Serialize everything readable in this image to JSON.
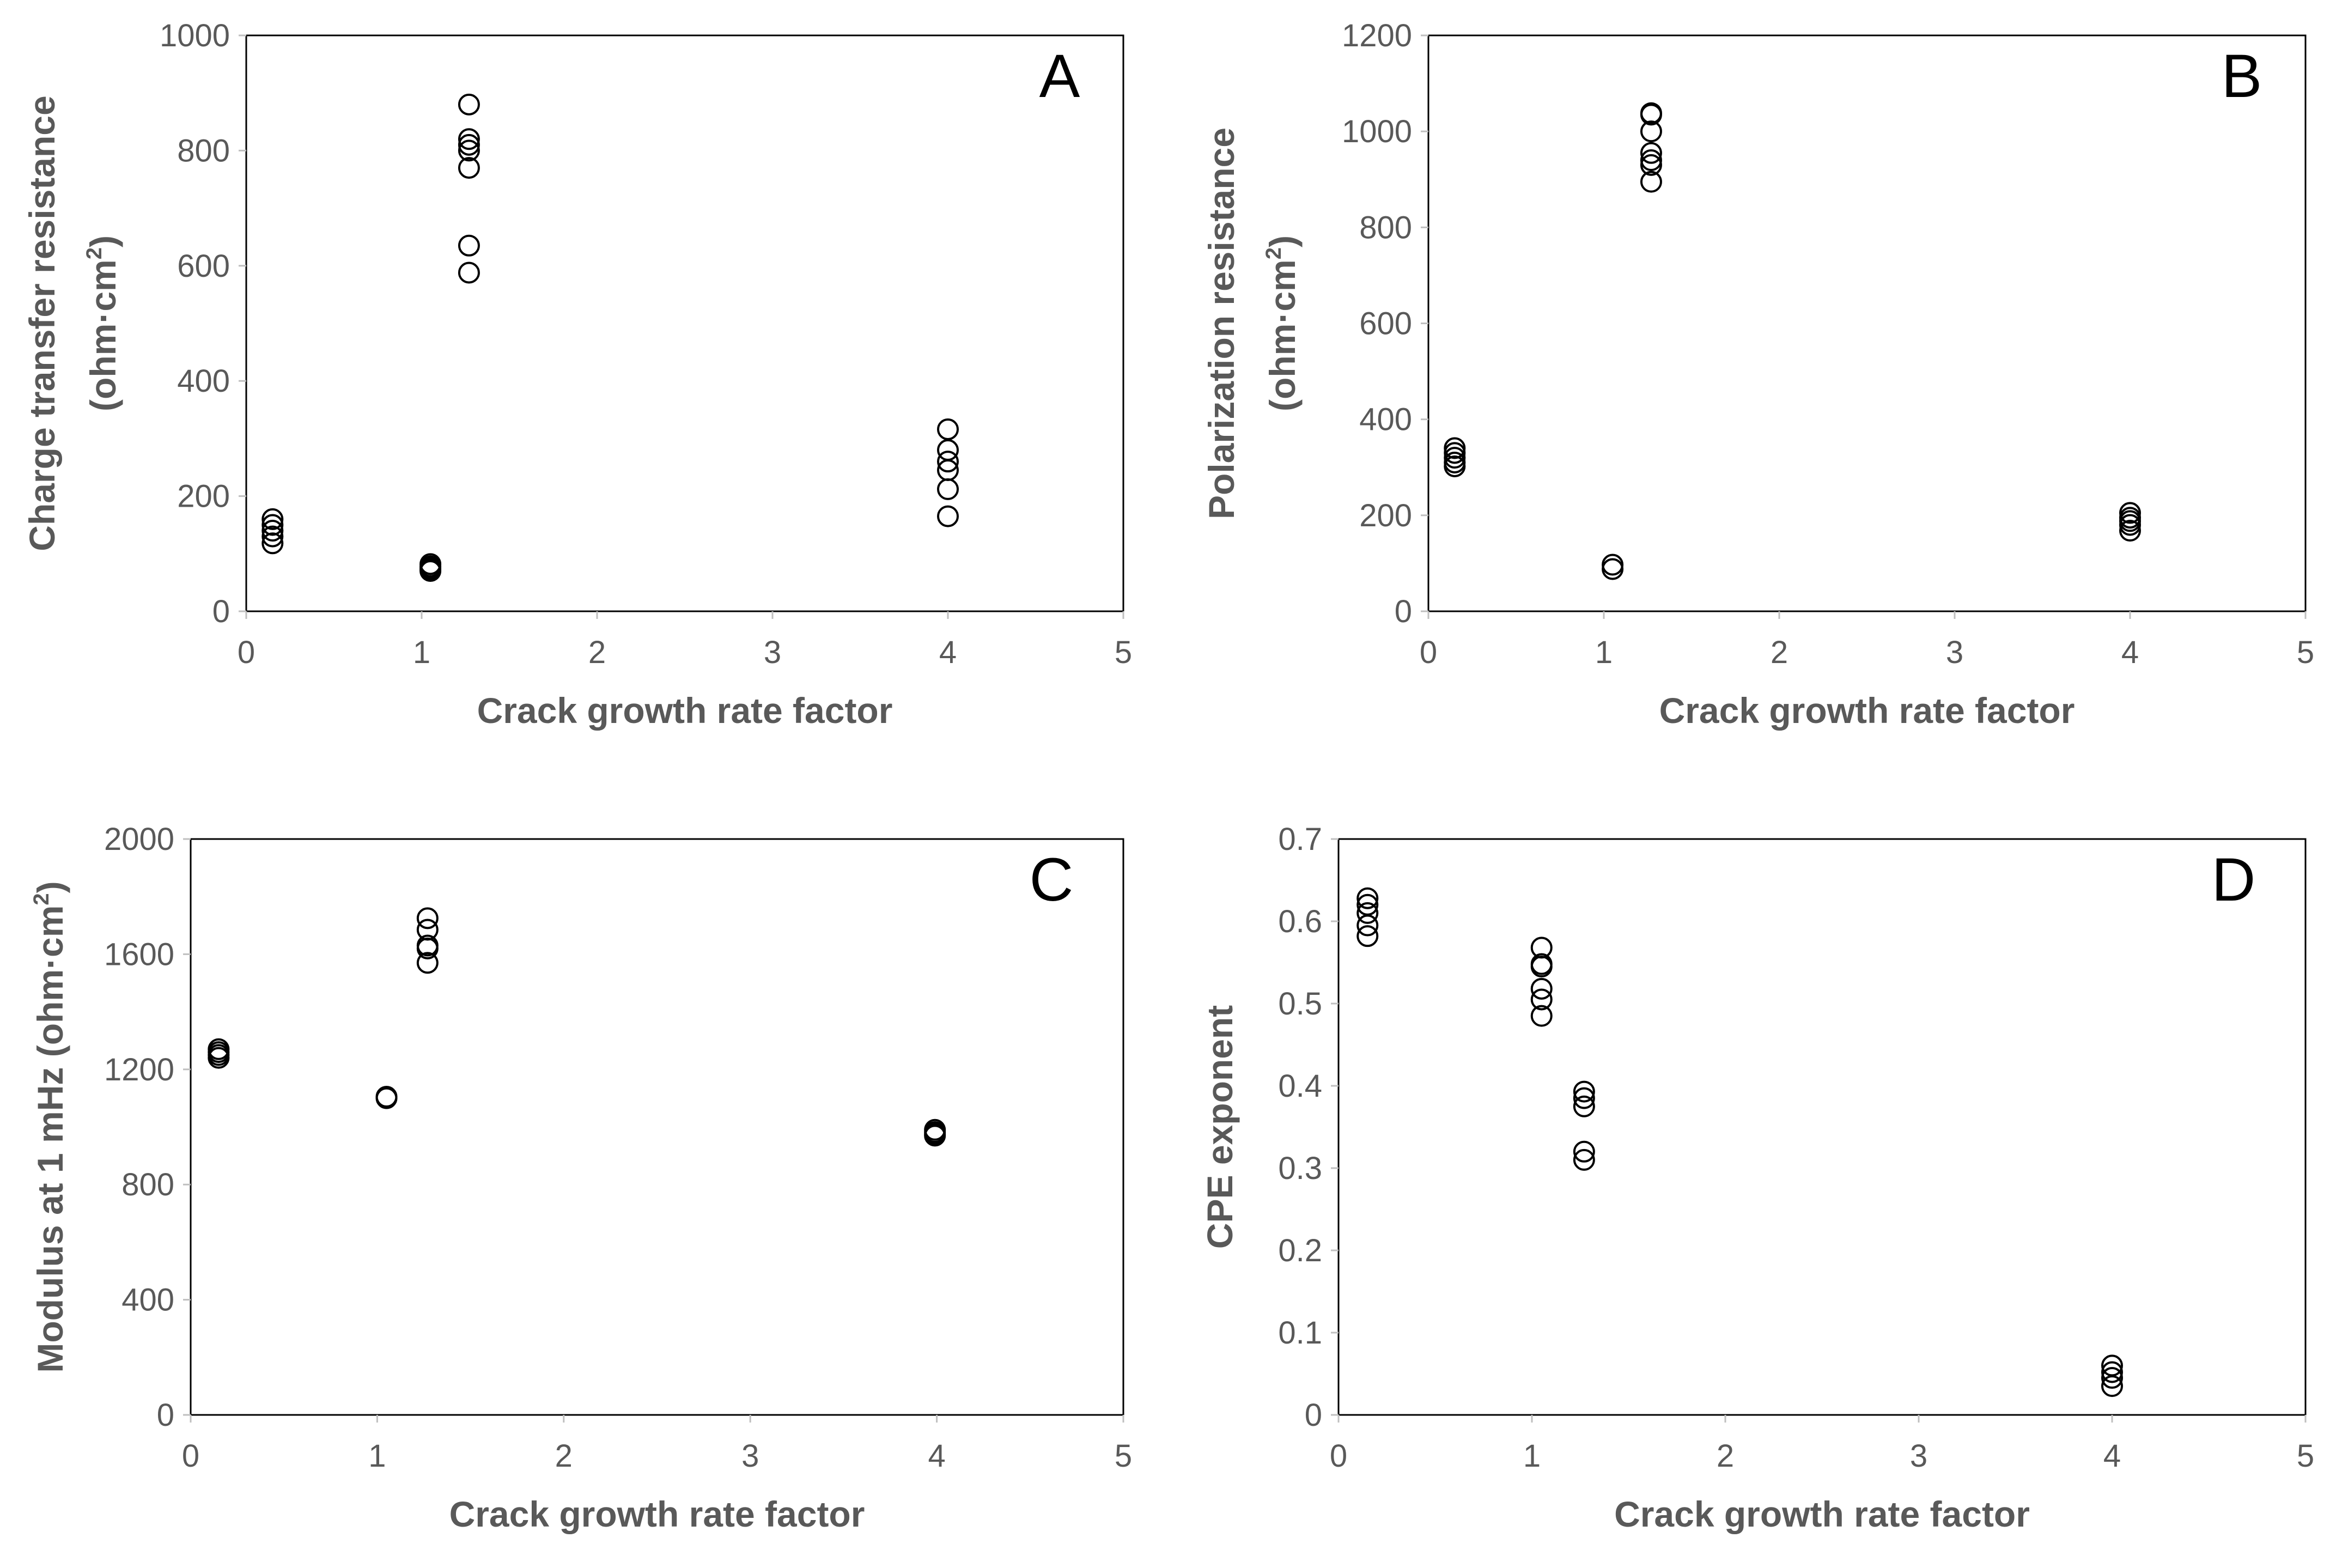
{
  "chart_data": [
    {
      "type": "scatter",
      "panel_letter": "A",
      "xlabel": "Crack growth rate factor",
      "ylabel_lines": [
        "Charge transfer resistance",
        "(ohm·cm",
        "2",
        ")"
      ],
      "xlim": [
        0,
        5
      ],
      "ylim": [
        0,
        1000
      ],
      "xticks": [
        0,
        1,
        2,
        3,
        4,
        5
      ],
      "yticks": [
        0,
        200,
        400,
        600,
        800,
        1000
      ],
      "grid": false,
      "marker": "open-circle",
      "points": [
        {
          "x": 0.15,
          "y": 160
        },
        {
          "x": 0.15,
          "y": 150
        },
        {
          "x": 0.15,
          "y": 140
        },
        {
          "x": 0.15,
          "y": 130
        },
        {
          "x": 0.15,
          "y": 118
        },
        {
          "x": 1.05,
          "y": 82
        },
        {
          "x": 1.05,
          "y": 78
        },
        {
          "x": 1.05,
          "y": 75
        },
        {
          "x": 1.05,
          "y": 72
        },
        {
          "x": 1.05,
          "y": 70
        },
        {
          "x": 1.27,
          "y": 880
        },
        {
          "x": 1.27,
          "y": 820
        },
        {
          "x": 1.27,
          "y": 810
        },
        {
          "x": 1.27,
          "y": 800
        },
        {
          "x": 1.27,
          "y": 770
        },
        {
          "x": 1.27,
          "y": 635
        },
        {
          "x": 1.27,
          "y": 588
        },
        {
          "x": 4.0,
          "y": 316
        },
        {
          "x": 4.0,
          "y": 280
        },
        {
          "x": 4.0,
          "y": 260
        },
        {
          "x": 4.0,
          "y": 245
        },
        {
          "x": 4.0,
          "y": 212
        },
        {
          "x": 4.0,
          "y": 165
        }
      ]
    },
    {
      "type": "scatter",
      "panel_letter": "B",
      "xlabel": "Crack growth rate factor",
      "ylabel_lines": [
        "Polarization resistance",
        "(ohm·cm",
        "2",
        ")"
      ],
      "xlim": [
        0,
        5
      ],
      "ylim": [
        0,
        1200
      ],
      "xticks": [
        0,
        1,
        2,
        3,
        4,
        5
      ],
      "yticks": [
        0,
        200,
        400,
        600,
        800,
        1000,
        1200
      ],
      "grid": false,
      "marker": "open-circle",
      "points": [
        {
          "x": 0.15,
          "y": 340
        },
        {
          "x": 0.15,
          "y": 330
        },
        {
          "x": 0.15,
          "y": 320
        },
        {
          "x": 0.15,
          "y": 310
        },
        {
          "x": 0.15,
          "y": 302
        },
        {
          "x": 1.05,
          "y": 97
        },
        {
          "x": 1.05,
          "y": 88
        },
        {
          "x": 1.27,
          "y": 1038
        },
        {
          "x": 1.27,
          "y": 1035
        },
        {
          "x": 1.27,
          "y": 1000
        },
        {
          "x": 1.27,
          "y": 955
        },
        {
          "x": 1.27,
          "y": 940
        },
        {
          "x": 1.27,
          "y": 930
        },
        {
          "x": 1.27,
          "y": 895
        },
        {
          "x": 4.0,
          "y": 205
        },
        {
          "x": 4.0,
          "y": 195
        },
        {
          "x": 4.0,
          "y": 188
        },
        {
          "x": 4.0,
          "y": 180
        },
        {
          "x": 4.0,
          "y": 168
        }
      ]
    },
    {
      "type": "scatter",
      "panel_letter": "C",
      "xlabel": "Crack growth rate factor",
      "ylabel_lines": [
        "Modulus at 1 mHz (ohm·cm",
        "2",
        ")"
      ],
      "xlim": [
        0,
        5
      ],
      "ylim": [
        0,
        2000
      ],
      "xticks": [
        0,
        1,
        2,
        3,
        4,
        5
      ],
      "yticks": [
        0,
        400,
        800,
        1200,
        1600,
        2000
      ],
      "grid": false,
      "marker": "open-circle",
      "points": [
        {
          "x": 0.15,
          "y": 1270
        },
        {
          "x": 0.15,
          "y": 1260
        },
        {
          "x": 0.15,
          "y": 1250
        },
        {
          "x": 0.15,
          "y": 1240
        },
        {
          "x": 1.05,
          "y": 1105
        },
        {
          "x": 1.05,
          "y": 1100
        },
        {
          "x": 1.27,
          "y": 1725
        },
        {
          "x": 1.27,
          "y": 1685
        },
        {
          "x": 1.27,
          "y": 1630
        },
        {
          "x": 1.27,
          "y": 1620
        },
        {
          "x": 1.27,
          "y": 1570
        },
        {
          "x": 3.99,
          "y": 990
        },
        {
          "x": 3.99,
          "y": 982
        },
        {
          "x": 3.99,
          "y": 975
        },
        {
          "x": 3.99,
          "y": 970
        }
      ]
    },
    {
      "type": "scatter",
      "panel_letter": "D",
      "xlabel": "Crack growth rate factor",
      "ylabel_lines": [
        "CPE exponent"
      ],
      "xlim": [
        0,
        5
      ],
      "ylim": [
        0,
        0.7
      ],
      "xticks": [
        0,
        1,
        2,
        3,
        4,
        5
      ],
      "yticks": [
        0,
        0.1,
        0.2,
        0.3,
        0.4,
        0.5,
        0.6,
        0.7
      ],
      "grid": false,
      "marker": "open-circle",
      "points": [
        {
          "x": 0.15,
          "y": 0.628
        },
        {
          "x": 0.15,
          "y": 0.62
        },
        {
          "x": 0.15,
          "y": 0.61
        },
        {
          "x": 0.15,
          "y": 0.595
        },
        {
          "x": 0.15,
          "y": 0.582
        },
        {
          "x": 1.05,
          "y": 0.568
        },
        {
          "x": 1.05,
          "y": 0.548
        },
        {
          "x": 1.05,
          "y": 0.545
        },
        {
          "x": 1.05,
          "y": 0.518
        },
        {
          "x": 1.05,
          "y": 0.505
        },
        {
          "x": 1.05,
          "y": 0.485
        },
        {
          "x": 1.27,
          "y": 0.393
        },
        {
          "x": 1.27,
          "y": 0.385
        },
        {
          "x": 1.27,
          "y": 0.375
        },
        {
          "x": 1.27,
          "y": 0.32
        },
        {
          "x": 1.27,
          "y": 0.31
        },
        {
          "x": 4.0,
          "y": 0.06
        },
        {
          "x": 4.0,
          "y": 0.052
        },
        {
          "x": 4.0,
          "y": 0.045
        },
        {
          "x": 4.0,
          "y": 0.035
        }
      ]
    }
  ]
}
